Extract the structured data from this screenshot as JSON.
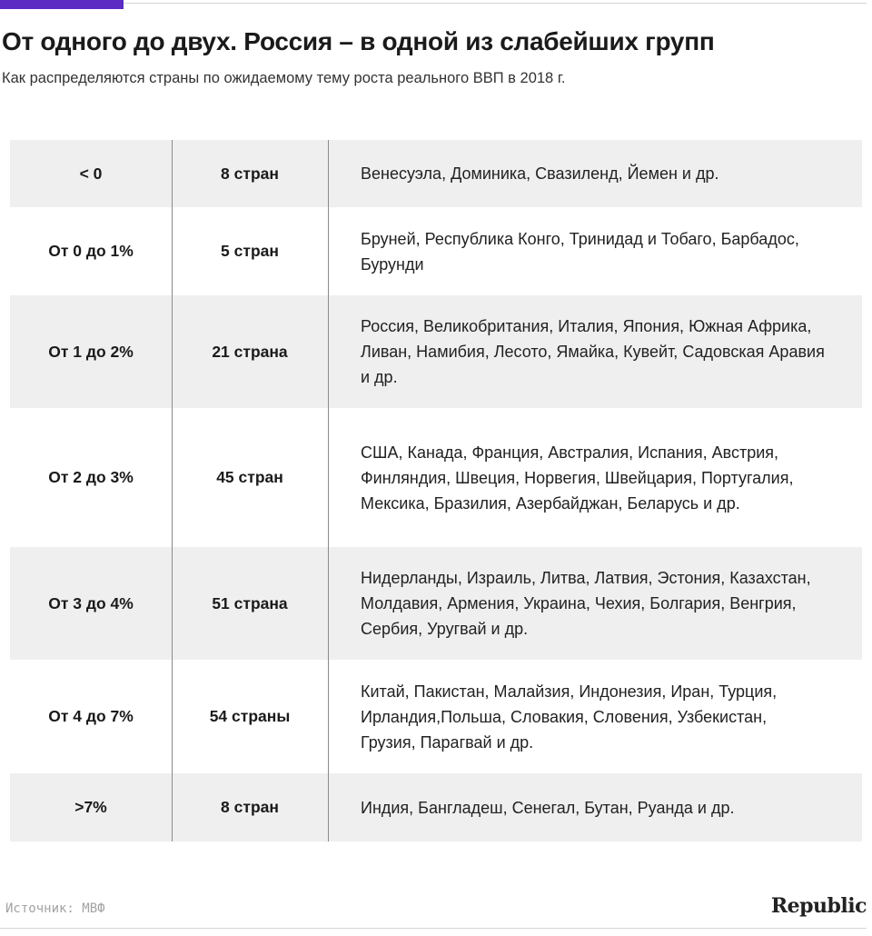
{
  "header": {
    "title": "От одного до двух. Россия – в одной из слабейших групп",
    "subtitle": "Как распределяются страны по ожидаемому тему роста реального ВВП в 2018 г.",
    "accent_color": "#5b2bc4"
  },
  "table": {
    "rows": [
      {
        "range": "< 0",
        "count": "8 стран",
        "countries": "Венесуэла, Доминика, Свазиленд, Йемен и др.",
        "shaded": true
      },
      {
        "range": "От 0 до 1%",
        "count": "5 стран",
        "countries": "Бруней, Республика Конго, Тринидад и Тобаго, Барбадос, Бурунди",
        "shaded": false
      },
      {
        "range": "От 1 до 2%",
        "count": "21 страна",
        "countries": "Россия, Великобритания, Италия, Япония, Южная Африка, Ливан, Намибия, Лесото, Ямайка, Кувейт, Садовская Аравия и др.",
        "shaded": true
      },
      {
        "range": "От 2 до 3%",
        "count": "45 стран",
        "countries": "США, Канада, Франция, Австралия, Испания, Австрия, Финляндия, Швеция, Норвегия, Швейцария, Португалия, Мексика, Бразилия, Азербайджан, Беларусь и др.",
        "shaded": false
      },
      {
        "range": "От 3 до 4%",
        "count": "51 страна",
        "countries": "Нидерланды, Израиль, Литва, Латвия, Эстония, Казахстан, Молдавия, Армения, Украина, Чехия, Болгария, Венгрия, Сербия, Уругвай  и др.",
        "shaded": true
      },
      {
        "range": "От 4 до 7%",
        "count": "54 страны",
        "countries": "Китай, Пакистан, Малайзия, Индонезия, Иран, Турция, Ирландия,Польша, Словакия, Словения, Узбекистан, Грузия, Парагвай и др.",
        "shaded": false
      },
      {
        "range": ">7%",
        "count": "8 стран",
        "countries": "Индия, Бангладеш, Сенегал, Бутан, Руанда и др.",
        "shaded": true
      }
    ],
    "shade_color": "#efefef"
  },
  "footer": {
    "source": "Источник: МВФ",
    "brand": "Republic"
  }
}
